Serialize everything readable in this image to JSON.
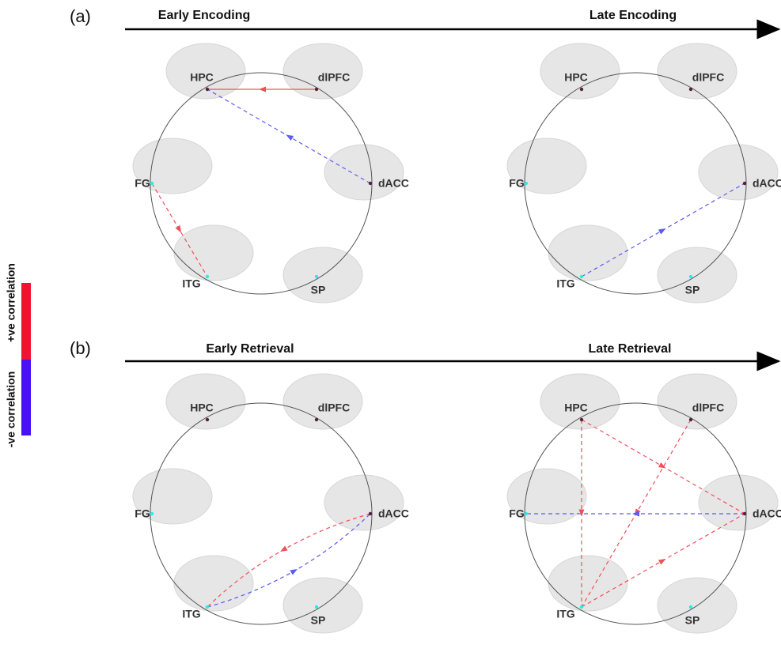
{
  "legend": {
    "positive": {
      "label": "+ve correlation",
      "color": "#f0142e"
    },
    "negative": {
      "label": "-ve correlation",
      "color": "#4a10f5"
    }
  },
  "rows": [
    {
      "tag": "(a)"
    },
    {
      "tag": "(b)"
    }
  ],
  "panels": [
    {
      "title": "Early Encoding",
      "nodes": [
        "HPC",
        "dlPFC",
        "dACC",
        "SP",
        "ITG",
        "FG"
      ],
      "edges": [
        {
          "from": 1,
          "to": 0,
          "color": "#f0505a",
          "dashed": false
        },
        {
          "from": 2,
          "to": 0,
          "color": "#5a5af5",
          "dashed": true
        },
        {
          "from": 5,
          "to": 4,
          "color": "#f0505a",
          "dashed": true
        }
      ]
    },
    {
      "title": "Late Encoding",
      "nodes": [
        "HPC",
        "dlPFC",
        "dACC",
        "SP",
        "ITG",
        "FG"
      ],
      "edges": [
        {
          "from": 4,
          "to": 2,
          "color": "#5a5af5",
          "dashed": true
        }
      ]
    },
    {
      "title": "Early Retrieval",
      "nodes": [
        "HPC",
        "dlPFC",
        "dACC",
        "SP",
        "ITG",
        "FG"
      ],
      "edges": [
        {
          "from": 2,
          "to": 4,
          "color": "#f0505a",
          "dashed": true
        },
        {
          "from": 4,
          "to": 2,
          "color": "#5a5af5",
          "dashed": true
        }
      ]
    },
    {
      "title": "Late Retrieval",
      "nodes": [
        "HPC",
        "dlPFC",
        "dACC",
        "SP",
        "ITG",
        "FG"
      ],
      "edges": [
        {
          "from": 0,
          "to": 4,
          "color": "#f0505a",
          "dashed": true
        },
        {
          "from": 0,
          "to": 2,
          "color": "#f0505a",
          "dashed": true
        },
        {
          "from": 1,
          "to": 4,
          "color": "#f0505a",
          "dashed": true
        },
        {
          "from": 2,
          "to": 5,
          "color": "#5a5af5",
          "dashed": true
        },
        {
          "from": 4,
          "to": 2,
          "color": "#f0505a",
          "dashed": true
        }
      ]
    }
  ]
}
